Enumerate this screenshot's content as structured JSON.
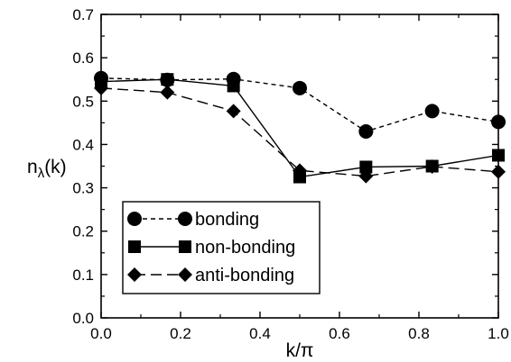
{
  "chart_data": {
    "type": "line",
    "xlabel": "k/π",
    "ylabel": {
      "main": "n",
      "sub": "λ",
      "tail": "(k)"
    },
    "xlim": [
      0.0,
      1.0
    ],
    "ylim": [
      0.0,
      0.7
    ],
    "xticks": [
      "0.0",
      "0.2",
      "0.4",
      "0.6",
      "0.8",
      "1.0"
    ],
    "yticks": [
      "0.0",
      "0.1",
      "0.2",
      "0.3",
      "0.4",
      "0.5",
      "0.6",
      "0.7"
    ],
    "grid": false,
    "legend_position": "bottom-left",
    "series": [
      {
        "name": "bonding",
        "marker": "circle",
        "line_style": "short-dash",
        "x": [
          0.0,
          0.1667,
          0.3333,
          0.5,
          0.6667,
          0.8333,
          1.0
        ],
        "y": [
          0.553,
          0.549,
          0.551,
          0.53,
          0.43,
          0.477,
          0.452
        ]
      },
      {
        "name": "non-bonding",
        "marker": "square",
        "line_style": "solid",
        "x": [
          0.0,
          0.1667,
          0.3333,
          0.5,
          0.6667,
          0.8333,
          1.0
        ],
        "y": [
          0.545,
          0.55,
          0.535,
          0.325,
          0.348,
          0.35,
          0.375
        ]
      },
      {
        "name": "anti-bonding",
        "marker": "diamond",
        "line_style": "long-dash",
        "x": [
          0.0,
          0.1667,
          0.3333,
          0.5,
          0.6667,
          0.8333,
          1.0
        ],
        "y": [
          0.53,
          0.52,
          0.477,
          0.34,
          0.327,
          0.349,
          0.337
        ]
      }
    ]
  }
}
